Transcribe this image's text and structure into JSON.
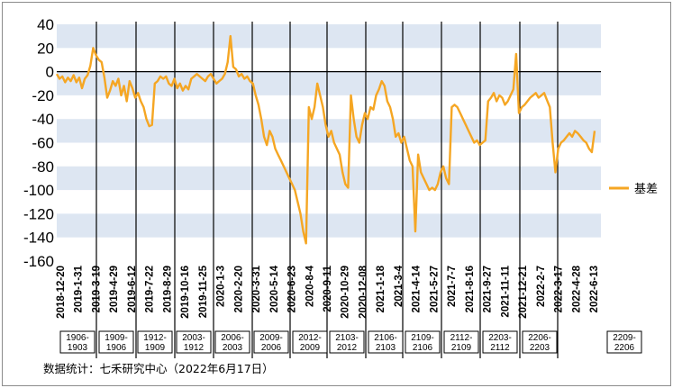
{
  "chart_data": {
    "type": "line",
    "title": "",
    "xlabel": "",
    "ylabel": "",
    "ylim": [
      -160,
      40
    ],
    "yticks": [
      40,
      20,
      0,
      -20,
      -40,
      -60,
      -80,
      -100,
      -120,
      -140,
      -160
    ],
    "grid": "alternating horizontal bands",
    "legend_position": "right",
    "x_tick_labels": [
      "2018-12-20",
      "2019-1-31",
      "2019-3-19",
      "2019-4-29",
      "2019-6-12",
      "2019-7-22",
      "2019-8-29",
      "2019-10-16",
      "2019-11-25",
      "2020-1-3",
      "2020-2-20",
      "2020-3-31",
      "2020-5-14",
      "2020-6-23",
      "2020-8-4",
      "2020-9-11",
      "2020-10-29",
      "2020-12-08",
      "2021-1-18",
      "2021-3-4",
      "2021-4-14",
      "2021-5-27",
      "2021-7-7",
      "2021-8-16",
      "2021-9-27",
      "2021-11-11",
      "2021-12-21",
      "2022-2-7",
      "2022-3-17",
      "2022-4-28",
      "2022-6-13"
    ],
    "series": [
      {
        "name": "基差",
        "color": "#f5a623",
        "values": [
          -2,
          -6,
          -4,
          -9,
          -5,
          -8,
          -3,
          -9,
          -5,
          -14,
          -6,
          -3,
          5,
          20,
          14,
          10,
          8,
          -5,
          -22,
          -16,
          -8,
          -12,
          -6,
          -20,
          -12,
          -25,
          -8,
          -14,
          -22,
          -18,
          -25,
          -30,
          -40,
          -46,
          -45,
          -10,
          -8,
          -4,
          -6,
          -4,
          -10,
          -12,
          -6,
          -14,
          -10,
          -16,
          -12,
          -15,
          -6,
          -4,
          -2,
          -4,
          -6,
          -8,
          -4,
          -2,
          -6,
          -10,
          -8,
          -6,
          -2,
          8,
          30,
          4,
          2,
          -4,
          -2,
          -6,
          -4,
          -8,
          -10,
          -20,
          -28,
          -40,
          -55,
          -62,
          -50,
          -55,
          -65,
          -70,
          -75,
          -80,
          -85,
          -90,
          -95,
          -100,
          -110,
          -120,
          -135,
          -145,
          -30,
          -40,
          -30,
          -10,
          -20,
          -30,
          -45,
          -55,
          -50,
          -60,
          -65,
          -70,
          -85,
          -95,
          -98,
          -20,
          -40,
          -55,
          -60,
          -45,
          -35,
          -40,
          -30,
          -32,
          -20,
          -15,
          -8,
          -12,
          -25,
          -30,
          -40,
          -55,
          -52,
          -60,
          -55,
          -65,
          -75,
          -80,
          -135,
          -70,
          -85,
          -90,
          -95,
          -100,
          -98,
          -100,
          -95,
          -85,
          -80,
          -90,
          -95,
          -30,
          -28,
          -30,
          -35,
          -40,
          -45,
          -50,
          -55,
          -60,
          -58,
          -62,
          -60,
          -58,
          -25,
          -22,
          -18,
          -25,
          -20,
          -22,
          -28,
          -25,
          -20,
          -15,
          15,
          -35,
          -30,
          -28,
          -25,
          -22,
          -20,
          -18,
          -22,
          -20,
          -18,
          -24,
          -30,
          -60,
          -85,
          -65,
          -60,
          -58,
          -55,
          -52,
          -55,
          -50,
          -52,
          -55,
          -58,
          -60,
          -65,
          -68,
          -50
        ]
      }
    ],
    "contract_boxes": [
      "1906-1903",
      "1909-1906",
      "1912-1909",
      "2003-1912",
      "2006-2003",
      "2009-2006",
      "2012-2009",
      "2103-2012",
      "2106-2103",
      "2109-2106",
      "2112-2109",
      "2203-2112",
      "2206-2203",
      "2209-2206"
    ]
  },
  "legend": {
    "label": "基差"
  },
  "source_note": "数据统计：七禾研究中心（2022年6月17日）"
}
